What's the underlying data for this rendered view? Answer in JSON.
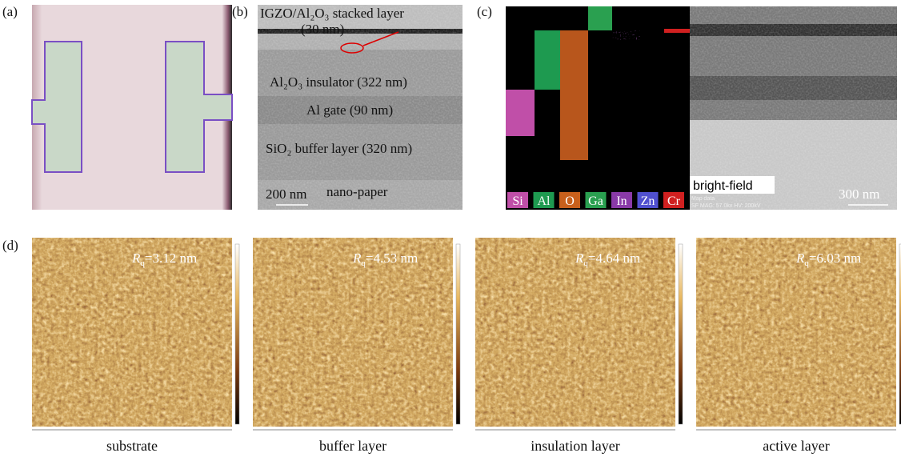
{
  "panels": {
    "a": {
      "label": "(a)"
    },
    "b": {
      "label": "(b)",
      "annotations": [
        "IGZO/Al₂O₃ stacked layer",
        "(30 nm)",
        "Al₂O₃ insulator (322 nm)",
        "Al gate (90 nm)",
        "SiO₂ buffer layer (320 nm)",
        "nano-paper"
      ],
      "scale_bar": "200 nm"
    },
    "c": {
      "label": "(c)",
      "elements": [
        "Si",
        "Al",
        "O",
        "Ga",
        "In",
        "Zn",
        "Cr"
      ],
      "bright_field": "bright-field",
      "scale_bar": "300 nm",
      "info": [
        "Map data",
        "SF MAG: 57.0kx HV: 200kV"
      ]
    },
    "d": {
      "label": "(d)",
      "images": [
        {
          "symbol": "R",
          "subscript": "q",
          "value": "=3.12 nm",
          "caption": "substrate"
        },
        {
          "symbol": "R",
          "subscript": "q",
          "value": "=4.53 nm",
          "caption": "buffer layer"
        },
        {
          "symbol": "R",
          "subscript": "q",
          "value": "=4.64 nm",
          "caption": "insulation layer"
        },
        {
          "symbol": "R",
          "subscript": "q",
          "value": "=6.03 nm",
          "caption": "active layer"
        }
      ]
    }
  }
}
